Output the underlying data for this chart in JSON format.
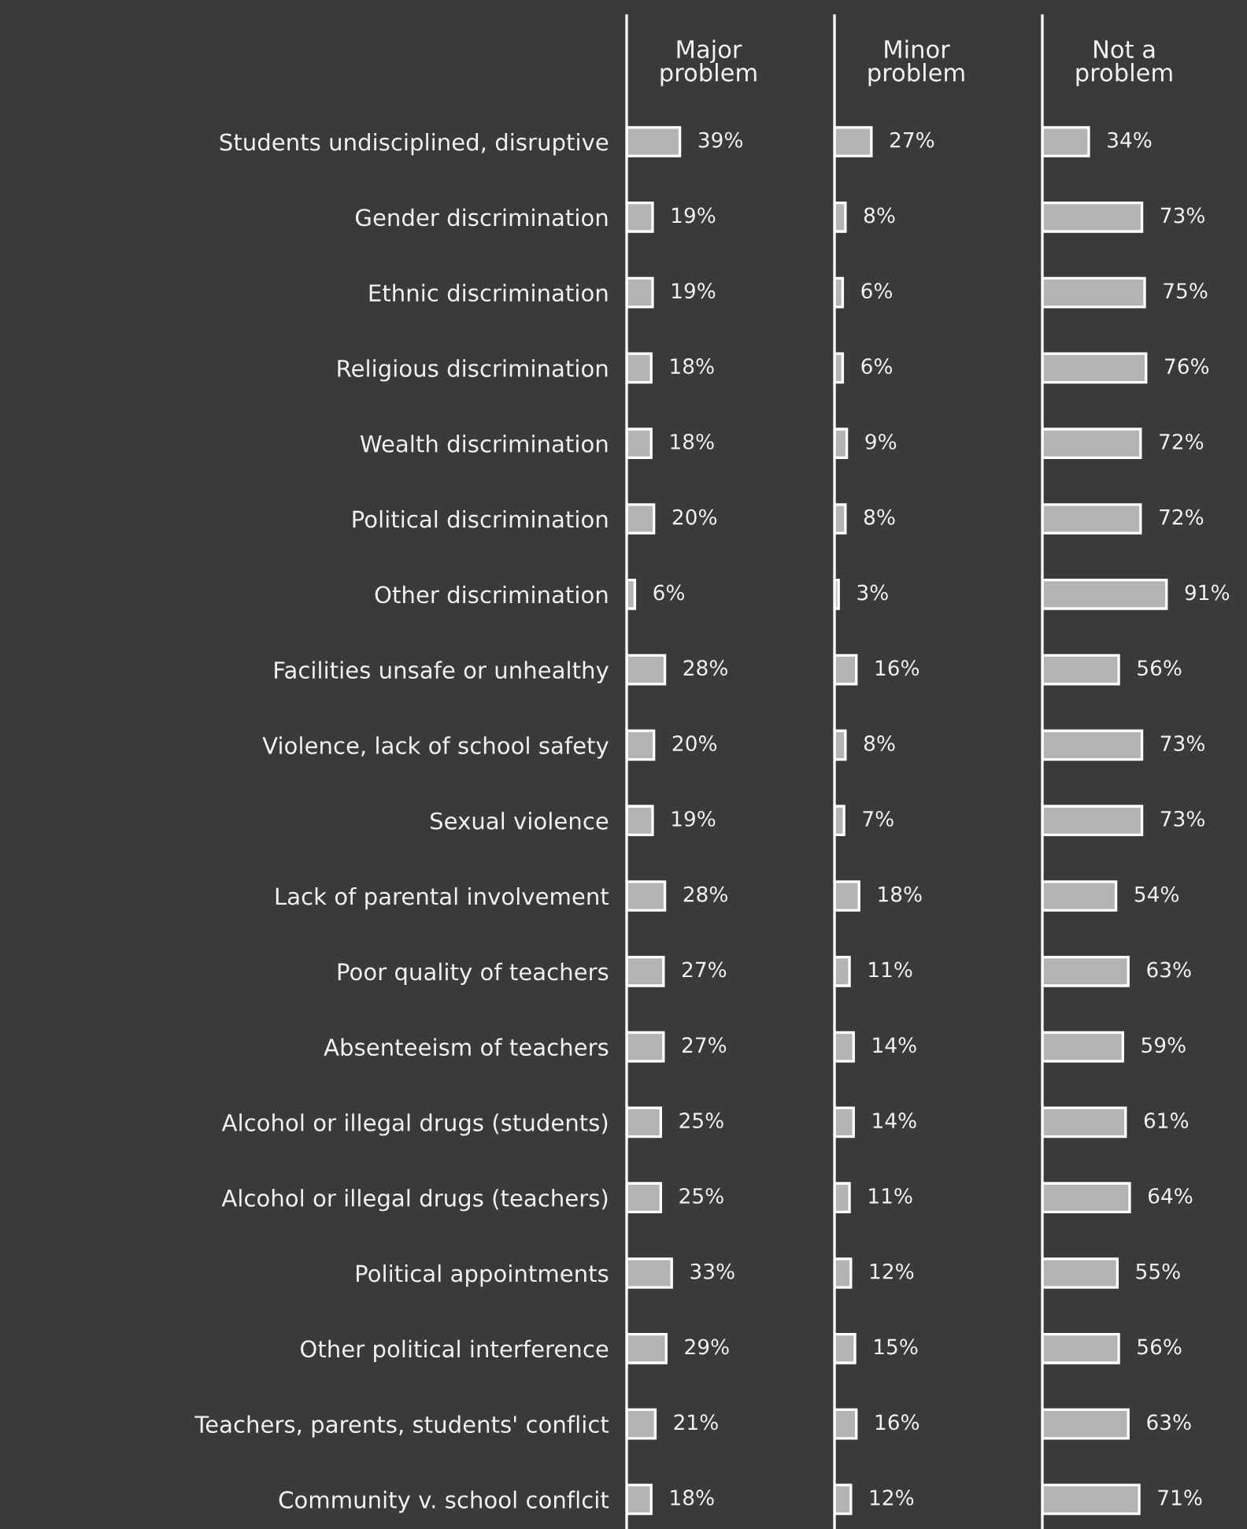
{
  "chart_data": [
    {
      "type": "bar",
      "orientation": "horizontal",
      "title": "Major\nproblem",
      "tick_labels": "y",
      "xlim": [
        0,
        150
      ],
      "categories": [
        "Students undisciplined, disruptive",
        "Gender discrimination",
        "Ethnic discrimination",
        "Religious discrimination",
        "Wealth discrimination",
        "Political discrimination",
        "Other discrimination",
        "Facilities unsafe or unhealthy",
        "Violence, lack of school safety",
        "Sexual violence",
        "Lack of parental involvement",
        "Poor quality of teachers",
        "Absenteeism of teachers",
        "Alcohol or illegal drugs (students)",
        "Alcohol or illegal drugs (teachers)",
        "Political appointments",
        "Other political interference",
        "Teachers, parents, students' conflict",
        "Community v. school conflcit"
      ],
      "color": "#b3b3b3",
      "values": [
        39,
        19,
        19,
        18,
        18,
        20,
        6,
        28,
        20,
        19,
        28,
        27,
        27,
        25,
        25,
        33,
        29,
        21,
        18
      ],
      "value_labels": [
        "39%",
        "19%",
        "19%",
        "18%",
        "18%",
        "20%",
        "6%",
        "28%",
        "20%",
        "19%",
        "28%",
        "27%",
        "27%",
        "25%",
        "25%",
        "33%",
        "29%",
        "21%",
        "18%"
      ]
    },
    {
      "type": "bar",
      "orientation": "horizontal",
      "title": "Minor\nproblem",
      "xlim": [
        0,
        150
      ],
      "categories": [
        null,
        null,
        null,
        null,
        null,
        null,
        null,
        null,
        null,
        null,
        null,
        null,
        null,
        null,
        null,
        null,
        null,
        null,
        null
      ],
      "color": "#b3b3b3",
      "values": [
        27,
        8,
        6,
        6,
        9,
        8,
        3,
        16,
        8,
        7,
        18,
        11,
        14,
        14,
        11,
        12,
        15,
        16,
        12
      ],
      "value_labels": [
        "27%",
        "8%",
        "6%",
        "6%",
        "9%",
        "8%",
        "3%",
        "16%",
        "8%",
        "7%",
        "18%",
        "11%",
        "14%",
        "14%",
        "11%",
        "12%",
        "15%",
        "16%",
        "12%"
      ]
    },
    {
      "type": "bar",
      "orientation": "horizontal",
      "title": "Not a\nproblem",
      "xlim": [
        0,
        150
      ],
      "categories": [
        null,
        null,
        null,
        null,
        null,
        null,
        null,
        null,
        null,
        null,
        null,
        null,
        null,
        null,
        null,
        null,
        null,
        null,
        null
      ],
      "color": "#b3b3b3",
      "values": [
        34,
        73,
        75,
        76,
        72,
        72,
        91,
        56,
        73,
        73,
        54,
        63,
        59,
        61,
        64,
        55,
        56,
        63,
        71
      ],
      "value_labels": [
        "34%",
        "73%",
        "75%",
        "76%",
        "72%",
        "72%",
        "91%",
        "56%",
        "73%",
        "73%",
        "54%",
        "63%",
        "59%",
        "61%",
        "64%",
        "55%",
        "56%",
        "63%",
        "71%"
      ]
    }
  ]
}
